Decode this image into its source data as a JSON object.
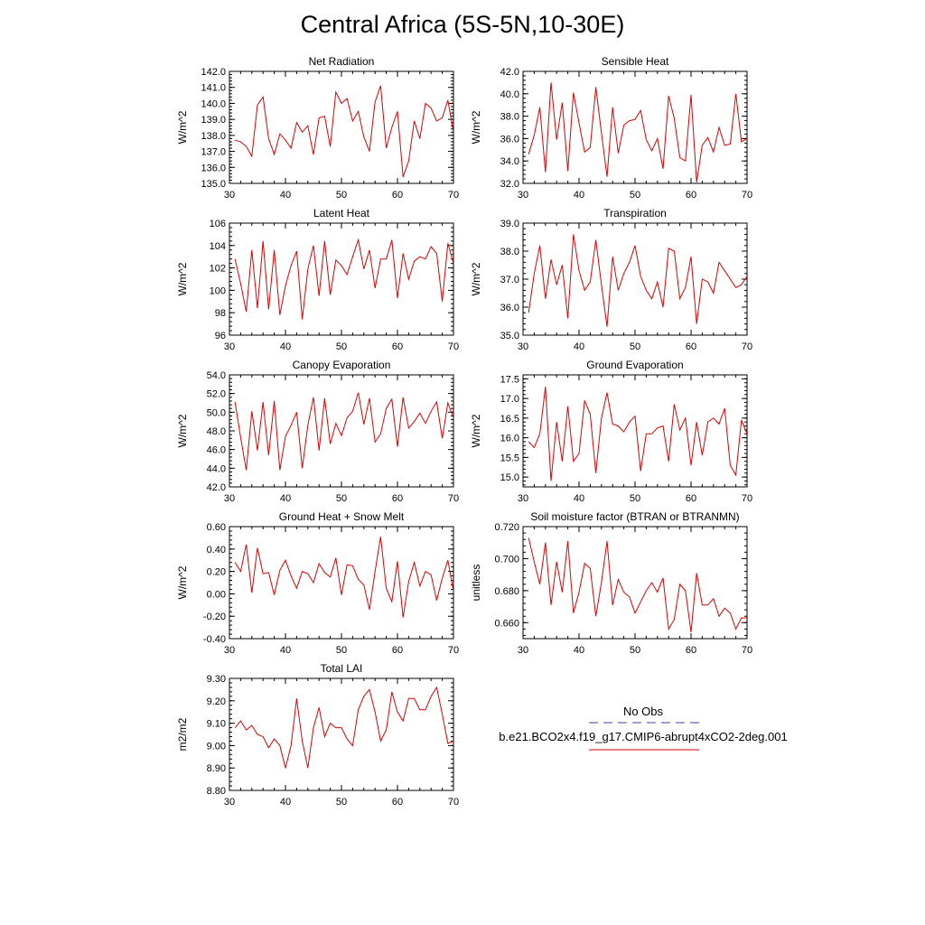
{
  "figure": {
    "title": "Central Africa (5S-5N,10-30E)",
    "line_color": "#e00000",
    "obs_color": "#4040a0"
  },
  "legend": {
    "obs_label": "No Obs",
    "model_label": "b.e21.BCO2x4.f19_g17.CMIP6-abrupt4xCO2-2deg.001"
  },
  "chart_data": [
    {
      "id": "net-radiation",
      "type": "line",
      "title": "Net Radiation",
      "xlabel": "",
      "ylabel": "W/m^2",
      "xlim": [
        30,
        70
      ],
      "ylim": [
        135.0,
        142.0
      ],
      "xticks": [
        30,
        40,
        50,
        60,
        70
      ],
      "yticks": [
        135.0,
        136.0,
        137.0,
        138.0,
        139.0,
        140.0,
        141.0,
        142.0
      ],
      "decimals": 1,
      "x": [
        31,
        32,
        33,
        34,
        35,
        36,
        37,
        38,
        39,
        40,
        41,
        42,
        43,
        44,
        45,
        46,
        47,
        48,
        49,
        50,
        51,
        52,
        53,
        54,
        55,
        56,
        57,
        58,
        59,
        60,
        61,
        62,
        63,
        64,
        65,
        66,
        67,
        68,
        69,
        70
      ],
      "values": [
        137.7,
        137.6,
        137.3,
        136.7,
        139.9,
        140.4,
        137.8,
        136.8,
        138.1,
        137.7,
        137.2,
        138.8,
        138.2,
        138.6,
        136.8,
        139.1,
        139.2,
        137.3,
        140.7,
        140.0,
        140.3,
        138.9,
        139.5,
        137.9,
        137.0,
        140.1,
        141.1,
        137.2,
        138.5,
        139.5,
        135.4,
        136.4,
        138.9,
        137.8,
        140.0,
        139.7,
        138.9,
        139.1,
        140.2,
        138.2
      ]
    },
    {
      "id": "sensible-heat",
      "type": "line",
      "title": "Sensible Heat",
      "xlabel": "",
      "ylabel": "W/m^2",
      "xlim": [
        30,
        70
      ],
      "ylim": [
        32.0,
        42.0
      ],
      "xticks": [
        30,
        40,
        50,
        60,
        70
      ],
      "yticks": [
        32.0,
        34.0,
        36.0,
        38.0,
        40.0,
        42.0
      ],
      "decimals": 1,
      "x": [
        31,
        32,
        33,
        34,
        35,
        36,
        37,
        38,
        39,
        40,
        41,
        42,
        43,
        44,
        45,
        46,
        47,
        48,
        49,
        50,
        51,
        52,
        53,
        54,
        55,
        56,
        57,
        58,
        59,
        60,
        61,
        62,
        63,
        64,
        65,
        66,
        67,
        68,
        69,
        70
      ],
      "values": [
        34.6,
        36.3,
        38.8,
        33.0,
        41.0,
        35.9,
        39.2,
        33.1,
        40.1,
        37.4,
        34.8,
        35.2,
        40.6,
        36.5,
        32.6,
        38.8,
        34.7,
        37.2,
        37.6,
        37.7,
        38.5,
        35.9,
        34.9,
        36.0,
        33.3,
        39.8,
        37.8,
        34.3,
        34.0,
        39.9,
        32.1,
        35.4,
        36.1,
        34.8,
        37.0,
        35.4,
        35.5,
        40.0,
        35.7,
        36.0
      ]
    },
    {
      "id": "latent-heat",
      "type": "line",
      "title": "Latent Heat",
      "xlabel": "",
      "ylabel": "W/m^2",
      "xlim": [
        30,
        70
      ],
      "ylim": [
        96,
        106
      ],
      "xticks": [
        30,
        40,
        50,
        60,
        70
      ],
      "yticks": [
        96,
        98,
        100,
        102,
        104,
        106
      ],
      "decimals": 0,
      "x": [
        31,
        32,
        33,
        34,
        35,
        36,
        37,
        38,
        39,
        40,
        41,
        42,
        43,
        44,
        45,
        46,
        47,
        48,
        49,
        50,
        51,
        52,
        53,
        54,
        55,
        56,
        57,
        58,
        59,
        60,
        61,
        62,
        63,
        64,
        65,
        66,
        67,
        68,
        69,
        70
      ],
      "values": [
        102.8,
        100.6,
        98.1,
        103.6,
        98.4,
        104.4,
        98.3,
        103.6,
        97.8,
        100.4,
        102.2,
        103.5,
        97.4,
        101.9,
        104.0,
        99.5,
        104.4,
        99.6,
        102.7,
        102.2,
        101.4,
        103.0,
        104.5,
        101.9,
        103.6,
        100.2,
        102.8,
        102.8,
        104.5,
        99.3,
        103.3,
        101.0,
        102.6,
        103.0,
        102.8,
        103.9,
        103.3,
        99.0,
        104.2,
        102.4
      ]
    },
    {
      "id": "transpiration",
      "type": "line",
      "title": "Transpiration",
      "xlabel": "",
      "ylabel": "W/m^2",
      "xlim": [
        30,
        70
      ],
      "ylim": [
        35.0,
        39.0
      ],
      "xticks": [
        30,
        40,
        50,
        60,
        70
      ],
      "yticks": [
        35.0,
        36.0,
        37.0,
        38.0,
        39.0
      ],
      "decimals": 1,
      "x": [
        31,
        32,
        33,
        34,
        35,
        36,
        37,
        38,
        39,
        40,
        41,
        42,
        43,
        44,
        45,
        46,
        47,
        48,
        49,
        50,
        51,
        52,
        53,
        54,
        55,
        56,
        57,
        58,
        59,
        60,
        61,
        62,
        63,
        64,
        65,
        66,
        67,
        68,
        69,
        70
      ],
      "values": [
        35.8,
        37.2,
        38.2,
        36.3,
        37.7,
        36.8,
        37.5,
        35.6,
        38.6,
        37.3,
        36.6,
        36.9,
        38.4,
        36.8,
        35.3,
        37.8,
        36.6,
        37.2,
        37.6,
        38.2,
        37.1,
        36.6,
        36.3,
        36.9,
        36.0,
        38.1,
        38.0,
        36.3,
        36.7,
        37.8,
        35.4,
        37.0,
        36.9,
        36.5,
        37.6,
        37.3,
        37.0,
        36.7,
        36.8,
        37.1
      ]
    },
    {
      "id": "canopy-evaporation",
      "type": "line",
      "title": "Canopy Evaporation",
      "xlabel": "",
      "ylabel": "W/m^2",
      "xlim": [
        30,
        70
      ],
      "ylim": [
        42.0,
        54.0
      ],
      "xticks": [
        30,
        40,
        50,
        60,
        70
      ],
      "yticks": [
        42.0,
        44.0,
        46.0,
        48.0,
        50.0,
        52.0,
        54.0
      ],
      "decimals": 1,
      "x": [
        31,
        32,
        33,
        34,
        35,
        36,
        37,
        38,
        39,
        40,
        41,
        42,
        43,
        44,
        45,
        46,
        47,
        48,
        49,
        50,
        51,
        52,
        53,
        54,
        55,
        56,
        57,
        58,
        59,
        60,
        61,
        62,
        63,
        64,
        65,
        66,
        67,
        68,
        69,
        70
      ],
      "values": [
        51.1,
        47.3,
        43.8,
        50.1,
        45.9,
        51.1,
        45.4,
        51.2,
        43.8,
        47.4,
        48.6,
        50.0,
        44.0,
        48.6,
        51.6,
        45.9,
        51.5,
        46.6,
        48.8,
        47.5,
        49.4,
        50.1,
        52.1,
        48.7,
        51.5,
        46.8,
        47.7,
        50.4,
        51.4,
        46.3,
        51.6,
        48.3,
        49.0,
        49.9,
        48.8,
        50.1,
        51.1,
        47.2,
        51.0,
        49.4
      ]
    },
    {
      "id": "ground-evaporation",
      "type": "line",
      "title": "Ground Evaporation",
      "xlabel": "",
      "ylabel": "W/m^2",
      "xlim": [
        30,
        70
      ],
      "ylim": [
        14.75,
        17.6
      ],
      "xticks": [
        30,
        40,
        50,
        60,
        70
      ],
      "yticks": [
        15.0,
        15.5,
        16.0,
        16.5,
        17.0,
        17.5
      ],
      "decimals": 1,
      "x": [
        31,
        32,
        33,
        34,
        35,
        36,
        37,
        38,
        39,
        40,
        41,
        42,
        43,
        44,
        45,
        46,
        47,
        48,
        49,
        50,
        51,
        52,
        53,
        54,
        55,
        56,
        57,
        58,
        59,
        60,
        61,
        62,
        63,
        64,
        65,
        66,
        67,
        68,
        69,
        70
      ],
      "values": [
        15.9,
        15.75,
        16.1,
        17.3,
        14.9,
        16.4,
        15.4,
        16.8,
        15.4,
        15.6,
        16.95,
        16.6,
        15.1,
        16.5,
        17.15,
        16.35,
        16.3,
        16.15,
        16.4,
        16.55,
        15.15,
        16.1,
        16.1,
        16.25,
        16.3,
        15.4,
        16.85,
        16.2,
        16.5,
        15.3,
        16.4,
        15.55,
        16.4,
        16.5,
        16.35,
        16.75,
        15.3,
        15.05,
        16.45,
        16.1
      ]
    },
    {
      "id": "ground-heat-snow-melt",
      "type": "line",
      "title": "Ground Heat + Snow Melt",
      "xlabel": "",
      "ylabel": "W/m^2",
      "xlim": [
        30,
        70
      ],
      "ylim": [
        -0.4,
        0.6
      ],
      "xticks": [
        30,
        40,
        50,
        60,
        70
      ],
      "yticks": [
        -0.4,
        -0.2,
        0.0,
        0.2,
        0.4,
        0.6
      ],
      "decimals": 2,
      "x": [
        31,
        32,
        33,
        34,
        35,
        36,
        37,
        38,
        39,
        40,
        41,
        42,
        43,
        44,
        45,
        46,
        47,
        48,
        49,
        50,
        51,
        52,
        53,
        54,
        55,
        56,
        57,
        58,
        59,
        60,
        61,
        62,
        63,
        64,
        65,
        66,
        67,
        68,
        69,
        70
      ],
      "values": [
        0.28,
        0.2,
        0.44,
        0.01,
        0.41,
        0.18,
        0.19,
        -0.01,
        0.21,
        0.3,
        0.16,
        0.05,
        0.2,
        0.18,
        0.1,
        0.27,
        0.19,
        0.15,
        0.32,
        -0.01,
        0.26,
        0.25,
        0.13,
        0.08,
        -0.14,
        0.2,
        0.51,
        0.05,
        -0.07,
        0.29,
        -0.21,
        0.11,
        0.28,
        0.07,
        0.2,
        0.17,
        -0.06,
        0.14,
        0.3,
        0.02
      ]
    },
    {
      "id": "soil-moisture-factor",
      "type": "line",
      "title": "Soil moisture factor (BTRAN or BTRANMN)",
      "xlabel": "",
      "ylabel": "unitless",
      "xlim": [
        30,
        70
      ],
      "ylim": [
        0.65,
        0.72
      ],
      "xticks": [
        30,
        40,
        50,
        60,
        70
      ],
      "yticks": [
        0.66,
        0.68,
        0.7,
        0.72
      ],
      "decimals": 3,
      "x": [
        31,
        32,
        33,
        34,
        35,
        36,
        37,
        38,
        39,
        40,
        41,
        42,
        43,
        44,
        45,
        46,
        47,
        48,
        49,
        50,
        51,
        52,
        53,
        54,
        55,
        56,
        57,
        58,
        59,
        60,
        61,
        62,
        63,
        64,
        65,
        66,
        67,
        68,
        69,
        70
      ],
      "values": [
        0.713,
        0.698,
        0.684,
        0.71,
        0.671,
        0.698,
        0.679,
        0.711,
        0.666,
        0.679,
        0.697,
        0.694,
        0.664,
        0.685,
        0.711,
        0.671,
        0.687,
        0.679,
        0.676,
        0.666,
        0.673,
        0.68,
        0.685,
        0.679,
        0.688,
        0.656,
        0.662,
        0.684,
        0.68,
        0.654,
        0.691,
        0.671,
        0.671,
        0.675,
        0.664,
        0.669,
        0.666,
        0.656,
        0.663,
        0.663
      ]
    },
    {
      "id": "total-lai",
      "type": "line",
      "title": "Total LAI",
      "xlabel": "",
      "ylabel": "m2/m2",
      "xlim": [
        30,
        70
      ],
      "ylim": [
        8.8,
        9.3
      ],
      "xticks": [
        30,
        40,
        50,
        60,
        70
      ],
      "yticks": [
        8.8,
        8.9,
        9.0,
        9.1,
        9.2,
        9.3
      ],
      "decimals": 2,
      "x": [
        31,
        32,
        33,
        34,
        35,
        36,
        37,
        38,
        39,
        40,
        41,
        42,
        43,
        44,
        45,
        46,
        47,
        48,
        49,
        50,
        51,
        52,
        53,
        54,
        55,
        56,
        57,
        58,
        59,
        60,
        61,
        62,
        63,
        64,
        65,
        66,
        67,
        68,
        69,
        70
      ],
      "values": [
        9.08,
        9.11,
        9.07,
        9.09,
        9.05,
        9.04,
        8.99,
        9.03,
        9.0,
        8.9,
        9.0,
        9.21,
        9.02,
        8.9,
        9.08,
        9.17,
        9.04,
        9.1,
        9.08,
        9.08,
        9.03,
        9.0,
        9.16,
        9.22,
        9.25,
        9.15,
        9.02,
        9.07,
        9.24,
        9.15,
        9.11,
        9.21,
        9.21,
        9.16,
        9.16,
        9.22,
        9.26,
        9.14,
        9.01,
        9.02
      ]
    }
  ]
}
